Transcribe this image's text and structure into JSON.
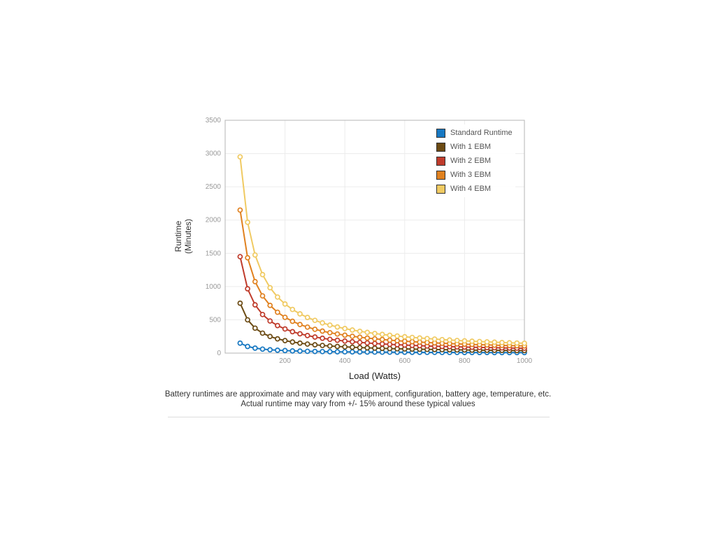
{
  "chart_data": {
    "type": "line",
    "title": "",
    "xlabel": "Load (Watts)",
    "ylabel_lines": [
      "Runtime",
      "(Minutes)"
    ],
    "xlim": [
      0,
      1000
    ],
    "ylim": [
      0,
      3500
    ],
    "x_ticks": [
      200,
      400,
      600,
      800,
      1000
    ],
    "y_ticks": [
      0,
      500,
      1000,
      1500,
      2000,
      2500,
      3000,
      3500
    ],
    "grid": true,
    "legend_position": "top-right",
    "x": [
      50,
      75,
      100,
      125,
      150,
      175,
      200,
      225,
      250,
      275,
      300,
      325,
      350,
      375,
      400,
      425,
      450,
      475,
      500,
      525,
      550,
      575,
      600,
      625,
      650,
      675,
      700,
      725,
      750,
      775,
      800,
      825,
      850,
      875,
      900,
      925,
      950,
      975,
      1000
    ],
    "series": [
      {
        "name": "Standard Runtime",
        "color": "#1778c2",
        "values": [
          150,
          100,
          75,
          60,
          50,
          43,
          38,
          33,
          30,
          27,
          25,
          23,
          21,
          20,
          19,
          18,
          17,
          16,
          15,
          14,
          14,
          13,
          13,
          12,
          12,
          11,
          11,
          10,
          10,
          10,
          9,
          9,
          9,
          9,
          8,
          8,
          8,
          8,
          8
        ]
      },
      {
        "name": "With 1 EBM",
        "color": "#6b4a13",
        "values": [
          750,
          500,
          375,
          300,
          250,
          214,
          188,
          167,
          150,
          136,
          125,
          115,
          107,
          100,
          94,
          88,
          83,
          79,
          75,
          71,
          68,
          65,
          63,
          60,
          58,
          56,
          54,
          52,
          50,
          48,
          47,
          45,
          44,
          43,
          42,
          41,
          39,
          38,
          38
        ]
      },
      {
        "name": "With 2 EBM",
        "color": "#bf3b2b",
        "values": [
          1450,
          967,
          725,
          580,
          483,
          414,
          363,
          322,
          290,
          264,
          242,
          223,
          207,
          193,
          181,
          171,
          161,
          153,
          145,
          138,
          132,
          126,
          121,
          116,
          112,
          107,
          104,
          100,
          97,
          94,
          91,
          88,
          85,
          83,
          81,
          78,
          76,
          74,
          73
        ]
      },
      {
        "name": "With 3 EBM",
        "color": "#e0811f",
        "values": [
          2150,
          1433,
          1075,
          860,
          717,
          614,
          538,
          478,
          430,
          391,
          358,
          331,
          307,
          287,
          269,
          253,
          239,
          226,
          215,
          205,
          195,
          187,
          179,
          172,
          165,
          159,
          154,
          148,
          143,
          139,
          134,
          130,
          126,
          123,
          119,
          116,
          113,
          110,
          108
        ]
      },
      {
        "name": "With 4 EBM",
        "color": "#f0ca62",
        "values": [
          2950,
          1967,
          1475,
          1180,
          983,
          843,
          738,
          656,
          590,
          536,
          492,
          454,
          421,
          393,
          369,
          347,
          328,
          311,
          295,
          281,
          268,
          257,
          246,
          236,
          227,
          219,
          211,
          203,
          197,
          190,
          184,
          179,
          174,
          169,
          164,
          159,
          155,
          151,
          148
        ]
      }
    ]
  },
  "caption": {
    "line1": "Battery runtimes are approximate and may vary with equipment, configuration, battery age, temperature, etc.",
    "line2": "Actual runtime may vary from +/- 15% around these typical values"
  }
}
